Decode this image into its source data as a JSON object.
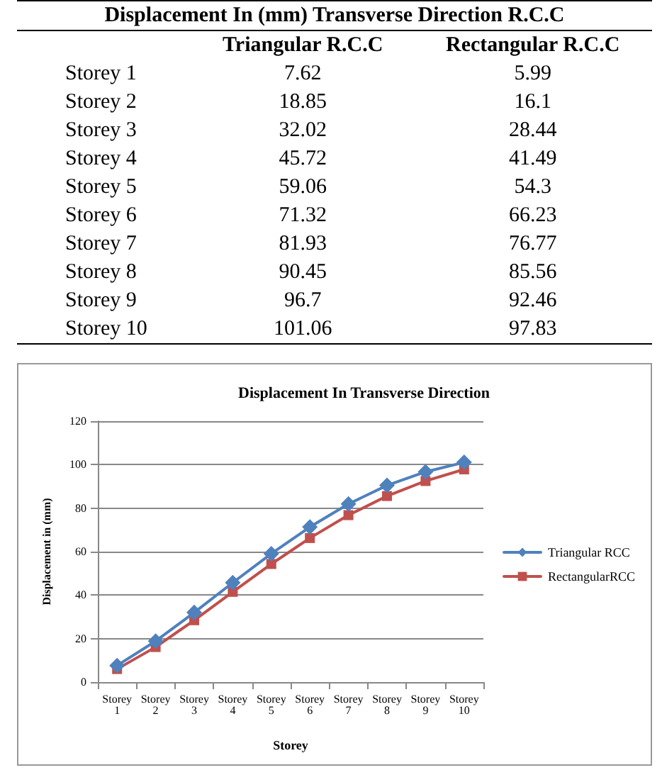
{
  "chart_data": [
    {
      "type": "other",
      "title": "Displacement In (mm) Transverse Direction R.C.C",
      "data_labels": true,
      "categories": [
        "Storey 1",
        "Storey 2",
        "Storey 3",
        "Storey 4",
        "Storey 5",
        "Storey 6",
        "Storey 7",
        "Storey 8",
        "Storey 9",
        "Storey 10"
      ],
      "series": [
        {
          "name": "Triangular R.C.C",
          "values": [
            7.62,
            18.85,
            32.02,
            45.72,
            59.06,
            71.32,
            81.93,
            90.45,
            96.7,
            101.06
          ]
        },
        {
          "name": "Rectangular R.C.C",
          "values": [
            5.99,
            16.1,
            28.44,
            41.49,
            54.3,
            66.23,
            76.77,
            85.56,
            92.46,
            97.83
          ]
        }
      ]
    },
    {
      "type": "line",
      "title": "Displacement In Transverse Direction",
      "xlabel": "Storey",
      "ylabel": "Displacement in (mm)",
      "categories": [
        "Storey 1",
        "Storey 2",
        "Storey 3",
        "Storey 4",
        "Storey 5",
        "Storey 6",
        "Storey 7",
        "Storey 8",
        "Storey 9",
        "Storey 10"
      ],
      "series": [
        {
          "name": "Triangular RCC",
          "color": "#4f81bd",
          "marker": "diamond",
          "values": [
            7.62,
            18.85,
            32.02,
            45.72,
            59.06,
            71.32,
            81.93,
            90.45,
            96.7,
            101.06
          ]
        },
        {
          "name": "RectangularRCC",
          "color": "#c0504d",
          "marker": "square",
          "values": [
            5.99,
            16.1,
            28.44,
            41.49,
            54.3,
            66.23,
            76.77,
            85.56,
            92.46,
            97.83
          ]
        }
      ],
      "ylim": [
        0,
        120
      ],
      "yticks": [
        0,
        20,
        40,
        60,
        80,
        100,
        120
      ],
      "grid": "y",
      "legend": "right"
    }
  ]
}
